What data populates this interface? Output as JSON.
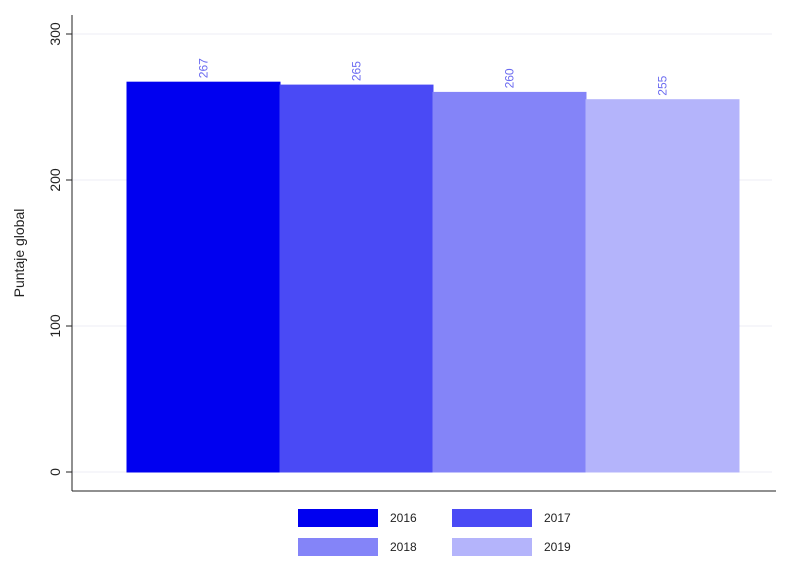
{
  "chart_data": {
    "type": "bar",
    "title": "",
    "xlabel": "",
    "ylabel": "Puntaje global",
    "ylim": [
      0,
      300
    ],
    "yticks": [
      0,
      100,
      200,
      300
    ],
    "categories": [
      "2016",
      "2017",
      "2018",
      "2019"
    ],
    "values": [
      267,
      265,
      260,
      255
    ],
    "data_labels": [
      "267",
      "265",
      "260",
      "255"
    ],
    "colors": [
      "#0000f0",
      "#4a4af5",
      "#8484f8",
      "#b4b4fb"
    ],
    "legend": {
      "placement": "bottom",
      "entries": [
        "2016",
        "2017",
        "2018",
        "2019"
      ]
    },
    "grid": true
  }
}
